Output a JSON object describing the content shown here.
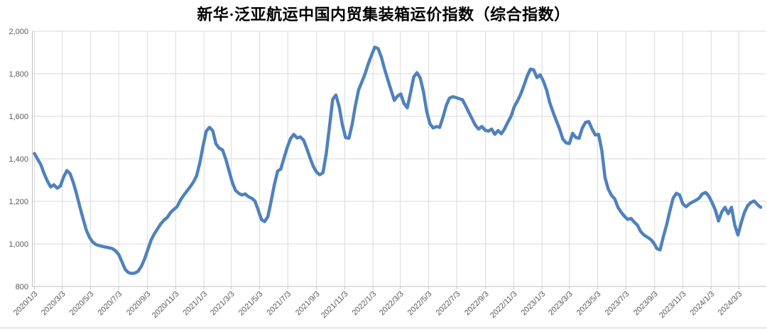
{
  "page": {
    "background": "#ffffff"
  },
  "chart_data": {
    "type": "line",
    "title": "新华·泛亚航运中国内贸集装箱运价指数（综合指数）",
    "legend": "none",
    "grid": true,
    "ylim": [
      800,
      2000
    ],
    "y_ticks": [
      800,
      1000,
      1200,
      1400,
      1600,
      1800,
      2000
    ],
    "y_tick_labels": [
      "800",
      "1,000",
      "1,200",
      "1,400",
      "1,600",
      "1,800",
      "2,000"
    ],
    "x_ticks": [
      {
        "label": "2020/1/3",
        "week": 0
      },
      {
        "label": "2020/3/3",
        "week": 8.57
      },
      {
        "label": "2020/5/3",
        "week": 17.29
      },
      {
        "label": "2020/7/3",
        "week": 26.0
      },
      {
        "label": "2020/9/3",
        "week": 34.86
      },
      {
        "label": "2020/11/3",
        "week": 43.57
      },
      {
        "label": "2021/1/3",
        "week": 52.29
      },
      {
        "label": "2021/3/3",
        "week": 60.71
      },
      {
        "label": "2021/5/3",
        "week": 69.43
      },
      {
        "label": "2021/7/3",
        "week": 78.14
      },
      {
        "label": "2021/9/3",
        "week": 87.0
      },
      {
        "label": "2021/11/3",
        "week": 95.71
      },
      {
        "label": "2022/1/3",
        "week": 104.43
      },
      {
        "label": "2022/3/3",
        "week": 112.86
      },
      {
        "label": "2022/5/3",
        "week": 121.57
      },
      {
        "label": "2022/7/3",
        "week": 130.29
      },
      {
        "label": "2022/9/3",
        "week": 139.14
      },
      {
        "label": "2022/11/3",
        "week": 147.86
      },
      {
        "label": "2023/1/3",
        "week": 156.57
      },
      {
        "label": "2023/3/3",
        "week": 165.0
      },
      {
        "label": "2023/5/3",
        "week": 173.71
      },
      {
        "label": "2023/7/3",
        "week": 182.43
      },
      {
        "label": "2023/9/3",
        "week": 191.29
      },
      {
        "label": "2023/11/3",
        "week": 200.0
      },
      {
        "label": "2024/1/3",
        "week": 208.71
      },
      {
        "label": "2024/3/3",
        "week": 217.29
      }
    ],
    "series": [
      {
        "name": "综合指数",
        "start_date": "2020/1/3",
        "frequency": "weekly",
        "values": [
          1425,
          1398,
          1372,
          1330,
          1295,
          1268,
          1278,
          1262,
          1272,
          1315,
          1345,
          1330,
          1288,
          1235,
          1175,
          1118,
          1065,
          1030,
          1008,
          997,
          992,
          988,
          985,
          982,
          978,
          968,
          950,
          915,
          880,
          865,
          861,
          863,
          872,
          895,
          930,
          975,
          1018,
          1048,
          1072,
          1095,
          1112,
          1125,
          1148,
          1162,
          1175,
          1205,
          1228,
          1248,
          1268,
          1290,
          1320,
          1380,
          1460,
          1530,
          1548,
          1532,
          1470,
          1450,
          1442,
          1400,
          1345,
          1290,
          1252,
          1238,
          1230,
          1235,
          1222,
          1215,
          1202,
          1160,
          1115,
          1105,
          1128,
          1200,
          1278,
          1342,
          1352,
          1405,
          1455,
          1495,
          1515,
          1498,
          1503,
          1488,
          1448,
          1405,
          1365,
          1338,
          1325,
          1335,
          1425,
          1550,
          1680,
          1700,
          1645,
          1558,
          1500,
          1497,
          1562,
          1650,
          1725,
          1762,
          1800,
          1848,
          1888,
          1925,
          1918,
          1878,
          1822,
          1772,
          1722,
          1675,
          1695,
          1705,
          1660,
          1640,
          1710,
          1785,
          1805,
          1780,
          1715,
          1622,
          1565,
          1545,
          1552,
          1548,
          1595,
          1650,
          1685,
          1692,
          1688,
          1683,
          1678,
          1650,
          1618,
          1588,
          1558,
          1540,
          1552,
          1535,
          1530,
          1540,
          1515,
          1533,
          1518,
          1540,
          1572,
          1600,
          1645,
          1672,
          1705,
          1745,
          1790,
          1822,
          1818,
          1782,
          1795,
          1765,
          1722,
          1662,
          1618,
          1578,
          1540,
          1492,
          1475,
          1472,
          1520,
          1500,
          1497,
          1545,
          1572,
          1575,
          1540,
          1512,
          1515,
          1440,
          1312,
          1258,
          1228,
          1212,
          1172,
          1148,
          1130,
          1115,
          1120,
          1103,
          1088,
          1058,
          1042,
          1032,
          1022,
          1005,
          978,
          972,
          1035,
          1090,
          1155,
          1215,
          1238,
          1230,
          1188,
          1175,
          1188,
          1197,
          1205,
          1215,
          1235,
          1242,
          1225,
          1195,
          1160,
          1108,
          1150,
          1172,
          1142,
          1172,
          1090,
          1042,
          1100,
          1148,
          1180,
          1195,
          1202,
          1185,
          1172
        ]
      }
    ],
    "colors": {
      "line": "#4F81BD",
      "grid": "#DADADA",
      "axis": "#BFBFBF",
      "tick_label": "#595959",
      "title": "#000000",
      "background": "#FFFFFF"
    }
  }
}
